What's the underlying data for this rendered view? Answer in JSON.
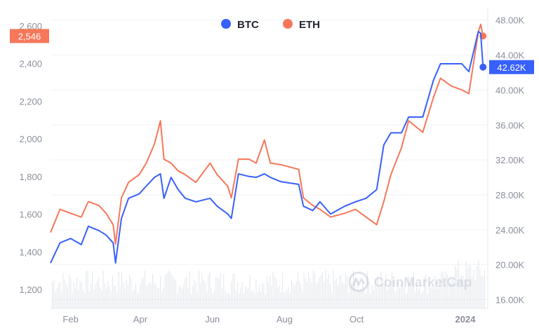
{
  "chart_data": {
    "type": "line",
    "title": "",
    "legend": {
      "placement": "top-center",
      "entries": [
        "BTC",
        "ETH"
      ]
    },
    "xlabel": "",
    "x_ticks": [
      {
        "label": "Feb",
        "date": "2023-02-01"
      },
      {
        "label": "Apr",
        "date": "2023-04-01"
      },
      {
        "label": "Jun",
        "date": "2023-06-01"
      },
      {
        "label": "Aug",
        "date": "2023-08-01"
      },
      {
        "label": "Oct",
        "date": "2023-10-01"
      },
      {
        "label": "2024",
        "date": "2024-01-01"
      }
    ],
    "xlim": [
      "2023-01-15",
      "2024-01-20"
    ],
    "left_axis": {
      "series": "ETH",
      "ylim": [
        1100,
        2700
      ],
      "ticks": [
        "1,200",
        "1,400",
        "1,600",
        "1,800",
        "2,000",
        "2,200",
        "2,400",
        "2,600"
      ],
      "tick_values": [
        1200,
        1400,
        1600,
        1800,
        2000,
        2200,
        2400,
        2600
      ]
    },
    "right_axis": {
      "series": "BTC",
      "ylim": [
        15000,
        49500
      ],
      "ticks": [
        "16.00K",
        "20.00K",
        "24.00K",
        "28.00K",
        "32.00K",
        "36.00K",
        "40.00K",
        "44.00K",
        "48.00K"
      ],
      "tick_values": [
        16000,
        20000,
        24000,
        28000,
        32000,
        36000,
        40000,
        44000,
        48000
      ]
    },
    "grid": true,
    "series": [
      {
        "name": "BTC",
        "color": "#3861fb",
        "axis": "right",
        "points": [
          [
            "2023-01-15",
            20200
          ],
          [
            "2023-01-23",
            22500
          ],
          [
            "2023-02-01",
            23000
          ],
          [
            "2023-02-10",
            22300
          ],
          [
            "2023-02-16",
            24400
          ],
          [
            "2023-02-25",
            23900
          ],
          [
            "2023-03-03",
            23400
          ],
          [
            "2023-03-09",
            22500
          ],
          [
            "2023-03-11",
            20200
          ],
          [
            "2023-03-16",
            25300
          ],
          [
            "2023-03-22",
            27600
          ],
          [
            "2023-03-31",
            28100
          ],
          [
            "2023-04-06",
            29000
          ],
          [
            "2023-04-13",
            30000
          ],
          [
            "2023-04-18",
            30400
          ],
          [
            "2023-04-21",
            27600
          ],
          [
            "2023-04-27",
            30000
          ],
          [
            "2023-05-03",
            28600
          ],
          [
            "2023-05-09",
            27600
          ],
          [
            "2023-05-18",
            27200
          ],
          [
            "2023-05-30",
            27600
          ],
          [
            "2023-06-05",
            26700
          ],
          [
            "2023-06-14",
            25800
          ],
          [
            "2023-06-17",
            25300
          ],
          [
            "2023-06-23",
            30400
          ],
          [
            "2023-07-02",
            30100
          ],
          [
            "2023-07-08",
            30000
          ],
          [
            "2023-07-15",
            30400
          ],
          [
            "2023-07-20",
            30000
          ],
          [
            "2023-07-29",
            29500
          ],
          [
            "2023-08-13",
            29200
          ],
          [
            "2023-08-17",
            26700
          ],
          [
            "2023-08-25",
            26200
          ],
          [
            "2023-08-31",
            27200
          ],
          [
            "2023-09-09",
            25800
          ],
          [
            "2023-09-21",
            26700
          ],
          [
            "2023-09-30",
            27200
          ],
          [
            "2023-10-09",
            27600
          ],
          [
            "2023-10-18",
            28600
          ],
          [
            "2023-10-24",
            33700
          ],
          [
            "2023-10-30",
            35100
          ],
          [
            "2023-11-08",
            35100
          ],
          [
            "2023-11-14",
            36900
          ],
          [
            "2023-11-26",
            36900
          ],
          [
            "2023-12-05",
            41100
          ],
          [
            "2023-12-11",
            43000
          ],
          [
            "2023-12-20",
            43000
          ],
          [
            "2023-12-29",
            43000
          ],
          [
            "2024-01-04",
            42100
          ],
          [
            "2024-01-12",
            46700
          ],
          [
            "2024-01-14",
            46500
          ],
          [
            "2024-01-16",
            42620
          ]
        ]
      },
      {
        "name": "ETH",
        "color": "#f6775a",
        "axis": "left",
        "points": [
          [
            "2023-01-15",
            1503
          ],
          [
            "2023-01-23",
            1626
          ],
          [
            "2023-02-01",
            1605
          ],
          [
            "2023-02-10",
            1585
          ],
          [
            "2023-02-16",
            1667
          ],
          [
            "2023-02-25",
            1646
          ],
          [
            "2023-03-03",
            1605
          ],
          [
            "2023-03-09",
            1544
          ],
          [
            "2023-03-11",
            1441
          ],
          [
            "2023-03-16",
            1687
          ],
          [
            "2023-03-22",
            1769
          ],
          [
            "2023-03-31",
            1810
          ],
          [
            "2023-04-06",
            1871
          ],
          [
            "2023-04-13",
            1974
          ],
          [
            "2023-04-18",
            2096
          ],
          [
            "2023-04-21",
            1892
          ],
          [
            "2023-04-27",
            1871
          ],
          [
            "2023-05-03",
            1830
          ],
          [
            "2023-05-09",
            1810
          ],
          [
            "2023-05-18",
            1769
          ],
          [
            "2023-05-30",
            1871
          ],
          [
            "2023-06-05",
            1810
          ],
          [
            "2023-06-14",
            1748
          ],
          [
            "2023-06-17",
            1687
          ],
          [
            "2023-06-23",
            1892
          ],
          [
            "2023-07-02",
            1892
          ],
          [
            "2023-07-08",
            1871
          ],
          [
            "2023-07-15",
            1994
          ],
          [
            "2023-07-20",
            1871
          ],
          [
            "2023-07-29",
            1863
          ],
          [
            "2023-08-13",
            1838
          ],
          [
            "2023-08-17",
            1687
          ],
          [
            "2023-08-25",
            1646
          ],
          [
            "2023-08-31",
            1626
          ],
          [
            "2023-09-09",
            1585
          ],
          [
            "2023-09-21",
            1605
          ],
          [
            "2023-09-30",
            1626
          ],
          [
            "2023-10-09",
            1585
          ],
          [
            "2023-10-18",
            1544
          ],
          [
            "2023-10-24",
            1667
          ],
          [
            "2023-10-30",
            1810
          ],
          [
            "2023-11-08",
            1953
          ],
          [
            "2023-11-14",
            2096
          ],
          [
            "2023-11-26",
            2035
          ],
          [
            "2023-12-05",
            2219
          ],
          [
            "2023-12-11",
            2322
          ],
          [
            "2023-12-20",
            2281
          ],
          [
            "2023-12-29",
            2260
          ],
          [
            "2024-01-04",
            2240
          ],
          [
            "2024-01-12",
            2567
          ],
          [
            "2024-01-14",
            2608
          ],
          [
            "2024-01-16",
            2546
          ]
        ]
      }
    ],
    "current_labels": {
      "ETH": "2,546",
      "BTC": "42.62K"
    },
    "watermark": "CoinMarketCap"
  }
}
